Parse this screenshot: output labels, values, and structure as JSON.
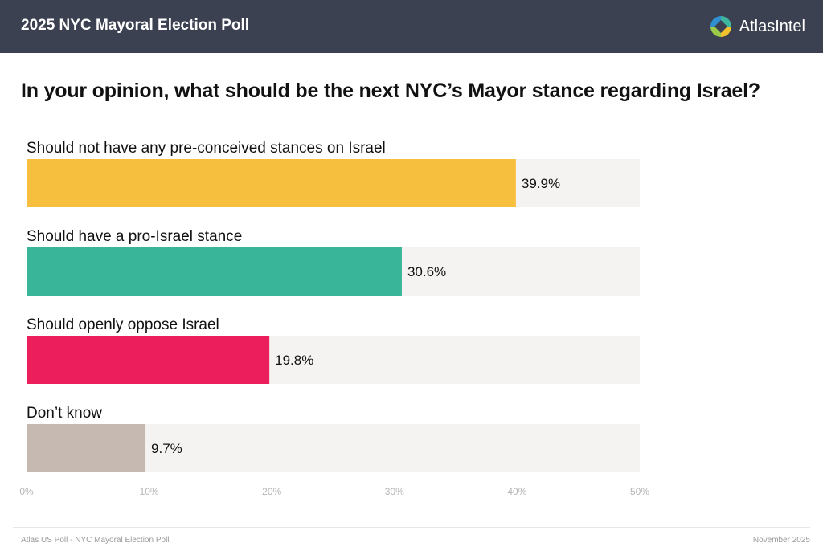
{
  "header": {
    "title": "2025 NYC Mayoral Election Poll",
    "brand": "AtlasIntel",
    "logo_icon": "atlasintel-logo-icon",
    "background_color": "#3b4150"
  },
  "question": "In your opinion, what should be the next NYC’s Mayor stance regarding Israel?",
  "chart_data": {
    "type": "bar",
    "orientation": "horizontal",
    "title": "In your opinion, what should be the next NYC’s Mayor stance regarding Israel?",
    "categories": [
      "Should not have any pre-conceived stances on Israel",
      "Should have a pro-Israel stance",
      "Should openly oppose Israel",
      "Don’t know"
    ],
    "values": [
      39.9,
      30.6,
      19.8,
      9.7
    ],
    "value_labels": [
      "39.9%",
      "30.6%",
      "19.8%",
      "9.7%"
    ],
    "colors": [
      "#f7bf3e",
      "#39b699",
      "#ec1f5c",
      "#c5b9b1"
    ],
    "track_color": "#f4f3f2",
    "xlim": [
      0,
      50
    ],
    "xticks": [
      0,
      10,
      20,
      30,
      40,
      50
    ],
    "xtick_labels": [
      "0%",
      "10%",
      "20%",
      "30%",
      "40%",
      "50%"
    ],
    "xlabel": "",
    "ylabel": "",
    "grid": false,
    "legend": "none"
  },
  "footer": {
    "source": "Atlas US Poll - NYC Mayoral Election Poll",
    "date": "November 2025"
  }
}
